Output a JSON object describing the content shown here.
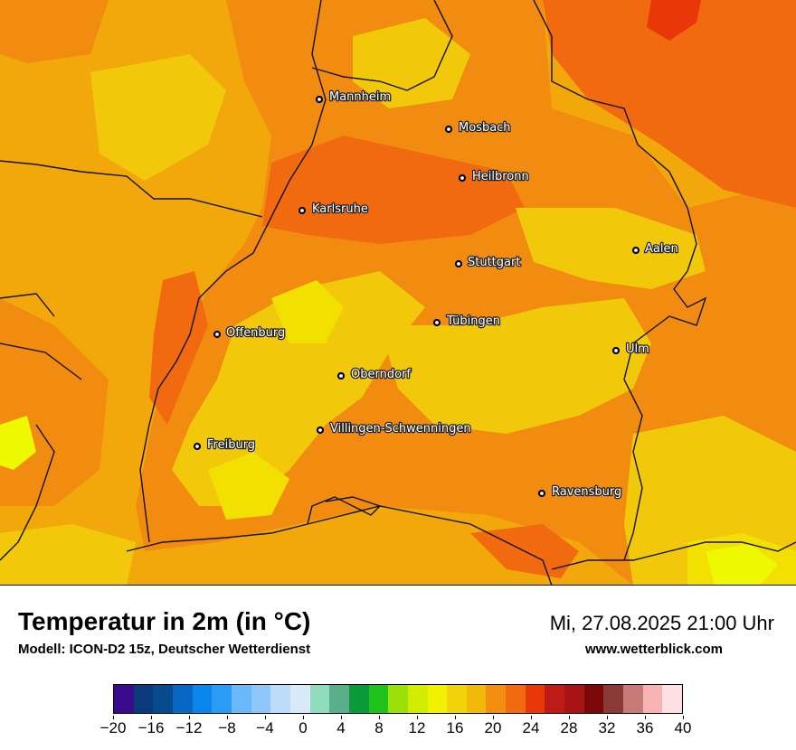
{
  "title": "Temperatur in 2m (in °C)",
  "subtitle": "Modell: ICON-D2 15z, Deutscher Wetterdienst",
  "datetime": "Mi, 27.08.2025 21:00 Uhr",
  "website": "www.wetterblick.com",
  "cities": [
    {
      "name": "Mannheim"
    },
    {
      "name": "Mosbach"
    },
    {
      "name": "Heilbronn"
    },
    {
      "name": "Karlsruhe"
    },
    {
      "name": "Aalen"
    },
    {
      "name": "Stuttgart"
    },
    {
      "name": "Tübingen"
    },
    {
      "name": "Offenburg"
    },
    {
      "name": "Ulm"
    },
    {
      "name": "Oberndorf"
    },
    {
      "name": "Villingen-Schwenningen"
    },
    {
      "name": "Freiburg"
    },
    {
      "name": "Ravensburg"
    }
  ],
  "legend": {
    "colors": [
      "#3a0a8c",
      "#0a3a7a",
      "#084a8e",
      "#0866c4",
      "#0a86ea",
      "#2a9cf6",
      "#6ab8fa",
      "#8ec8fa",
      "#bcdcfa",
      "#d8eafa",
      "#90dcbe",
      "#5aae8a",
      "#0a9a3a",
      "#1ec21a",
      "#9ce00a",
      "#d2ec00",
      "#f2f200",
      "#f2d20a",
      "#f2b80a",
      "#f28e10",
      "#f26a10",
      "#e8380a",
      "#be1a16",
      "#a81414",
      "#7a0808",
      "#8a3a36",
      "#c87a78",
      "#f8b4b4",
      "#fde0e4"
    ],
    "ticks": [
      "−20",
      "−16",
      "−12",
      "−8",
      "−4",
      "0",
      "4",
      "8",
      "12",
      "16",
      "20",
      "24",
      "28",
      "32",
      "36",
      "40"
    ]
  },
  "map_colors": {
    "base": "#f2a80a",
    "warm": "#f28c10",
    "hot": "#f26a10",
    "hottest": "#e8380a",
    "cool": "#f2c80a",
    "cooler": "#f2e000",
    "coolest": "#eef800",
    "border": "#111111"
  }
}
